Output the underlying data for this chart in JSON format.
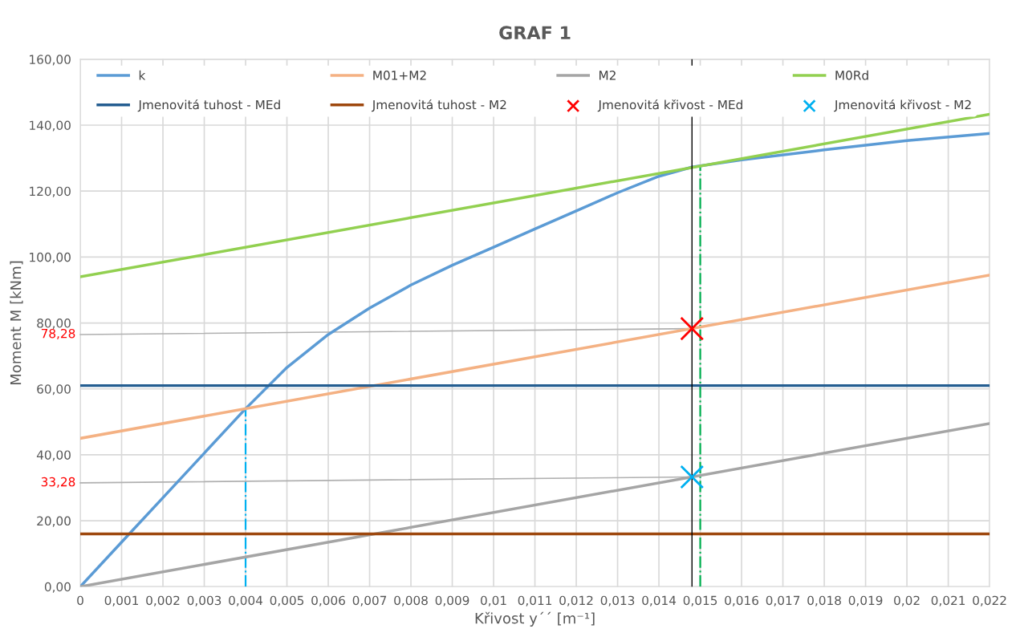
{
  "chart_data": {
    "type": "line",
    "title": "GRAF 1",
    "xlabel": "Křivost y´´ [m⁻¹]",
    "ylabel": "Moment M [kNm]",
    "xlim": [
      0,
      0.022
    ],
    "ylim": [
      0,
      160
    ],
    "xticks": [
      0,
      {
        "value": 0.001,
        "label": "0,001"
      },
      {
        "value": 0.002,
        "label": "0,002"
      },
      {
        "value": 0.003,
        "label": "0,003"
      },
      {
        "value": 0.004,
        "label": "0,004"
      },
      {
        "value": 0.005,
        "label": "0,005"
      },
      {
        "value": 0.006,
        "label": "0,006"
      },
      {
        "value": 0.007,
        "label": "0,007"
      },
      {
        "value": 0.008,
        "label": "0,008"
      },
      {
        "value": 0.009,
        "label": "0,009"
      },
      {
        "value": 0.01,
        "label": "0,01"
      },
      {
        "value": 0.011,
        "label": "0,011"
      },
      {
        "value": 0.012,
        "label": "0,012"
      },
      {
        "value": 0.013,
        "label": "0,013"
      },
      {
        "value": 0.014,
        "label": "0,014"
      },
      {
        "value": 0.015,
        "label": "0,015"
      },
      {
        "value": 0.016,
        "label": "0,016"
      },
      {
        "value": 0.017,
        "label": "0,017"
      },
      {
        "value": 0.018,
        "label": "0,018"
      },
      {
        "value": 0.019,
        "label": "0,019"
      },
      {
        "value": 0.02,
        "label": "0,02"
      },
      {
        "value": 0.021,
        "label": "0,021"
      },
      {
        "value": 0.022,
        "label": "0,022"
      }
    ],
    "yticks": [
      {
        "value": 0,
        "label": "0,00"
      },
      {
        "value": 20,
        "label": "20,00"
      },
      {
        "value": 40,
        "label": "40,00"
      },
      {
        "value": 60,
        "label": "60,00"
      },
      {
        "value": 80,
        "label": "80,00"
      },
      {
        "value": 100,
        "label": "100,00"
      },
      {
        "value": 120,
        "label": "120,00"
      },
      {
        "value": 140,
        "label": "140,00"
      },
      {
        "value": 160,
        "label": "160,00"
      }
    ],
    "grid": true,
    "legend": "top",
    "series": [
      {
        "name": "k",
        "color": "#5b9bd5",
        "x": [
          0,
          0.001,
          0.002,
          0.003,
          0.004,
          0.005,
          0.006,
          0.007,
          0.008,
          0.009,
          0.01,
          0.011,
          0.012,
          0.013,
          0.014,
          0.0148,
          0.016,
          0.018,
          0.02,
          0.022
        ],
        "values": [
          0,
          13.5,
          27,
          40.5,
          54,
          66.5,
          76.5,
          84.5,
          91.5,
          97.5,
          103,
          108.5,
          114,
          119.5,
          124.5,
          127.3,
          129.5,
          132.5,
          135.3,
          137.5
        ]
      },
      {
        "name": "M01+M2",
        "color": "#f4b183",
        "x": [
          0,
          0.022
        ],
        "values": [
          45,
          94.5
        ]
      },
      {
        "name": "M2",
        "color": "#a5a5a5",
        "x": [
          0,
          0.022
        ],
        "values": [
          0,
          49.5
        ]
      },
      {
        "name": "M0Rd",
        "color": "#92d050",
        "x": [
          0,
          0.022
        ],
        "values": [
          94,
          143.3
        ]
      },
      {
        "name": "Jmenovitá tuhost - MEd",
        "color": "#255e91",
        "x": [
          0,
          0.022
        ],
        "values": [
          61,
          61
        ]
      },
      {
        "name": "Jmenovitá tuhost - M2",
        "color": "#9e480e",
        "x": [
          0,
          0.022
        ],
        "values": [
          16,
          16
        ]
      },
      {
        "name": "Jmenovitá křivost - MEd",
        "type": "scatter",
        "marker": "cross",
        "color": "#ff0000",
        "x": [
          0.0148
        ],
        "values": [
          78.28
        ]
      },
      {
        "name": "Jmenovitá křivost - M2",
        "type": "scatter",
        "marker": "cross",
        "color": "#00b0f0",
        "x": [
          0.0148
        ],
        "values": [
          33.28
        ]
      },
      {
        "color": "#00b0f0",
        "line_style": "dashdot",
        "x": [
          0.004,
          0.004
        ],
        "values": [
          0,
          54
        ]
      },
      {
        "color": "#00b050",
        "line_style": "dashdot",
        "x": [
          0.015,
          0.015
        ],
        "values": [
          0,
          127.5
        ]
      }
    ],
    "ref_lines": [
      {
        "axis": "x",
        "value": 0.0148,
        "color": "#000000"
      }
    ],
    "annotations": [
      {
        "text": "78,28",
        "x": 0.0148,
        "y": 78.28
      },
      {
        "text": "33,28",
        "x": 0.0148,
        "y": 33.28
      }
    ]
  }
}
